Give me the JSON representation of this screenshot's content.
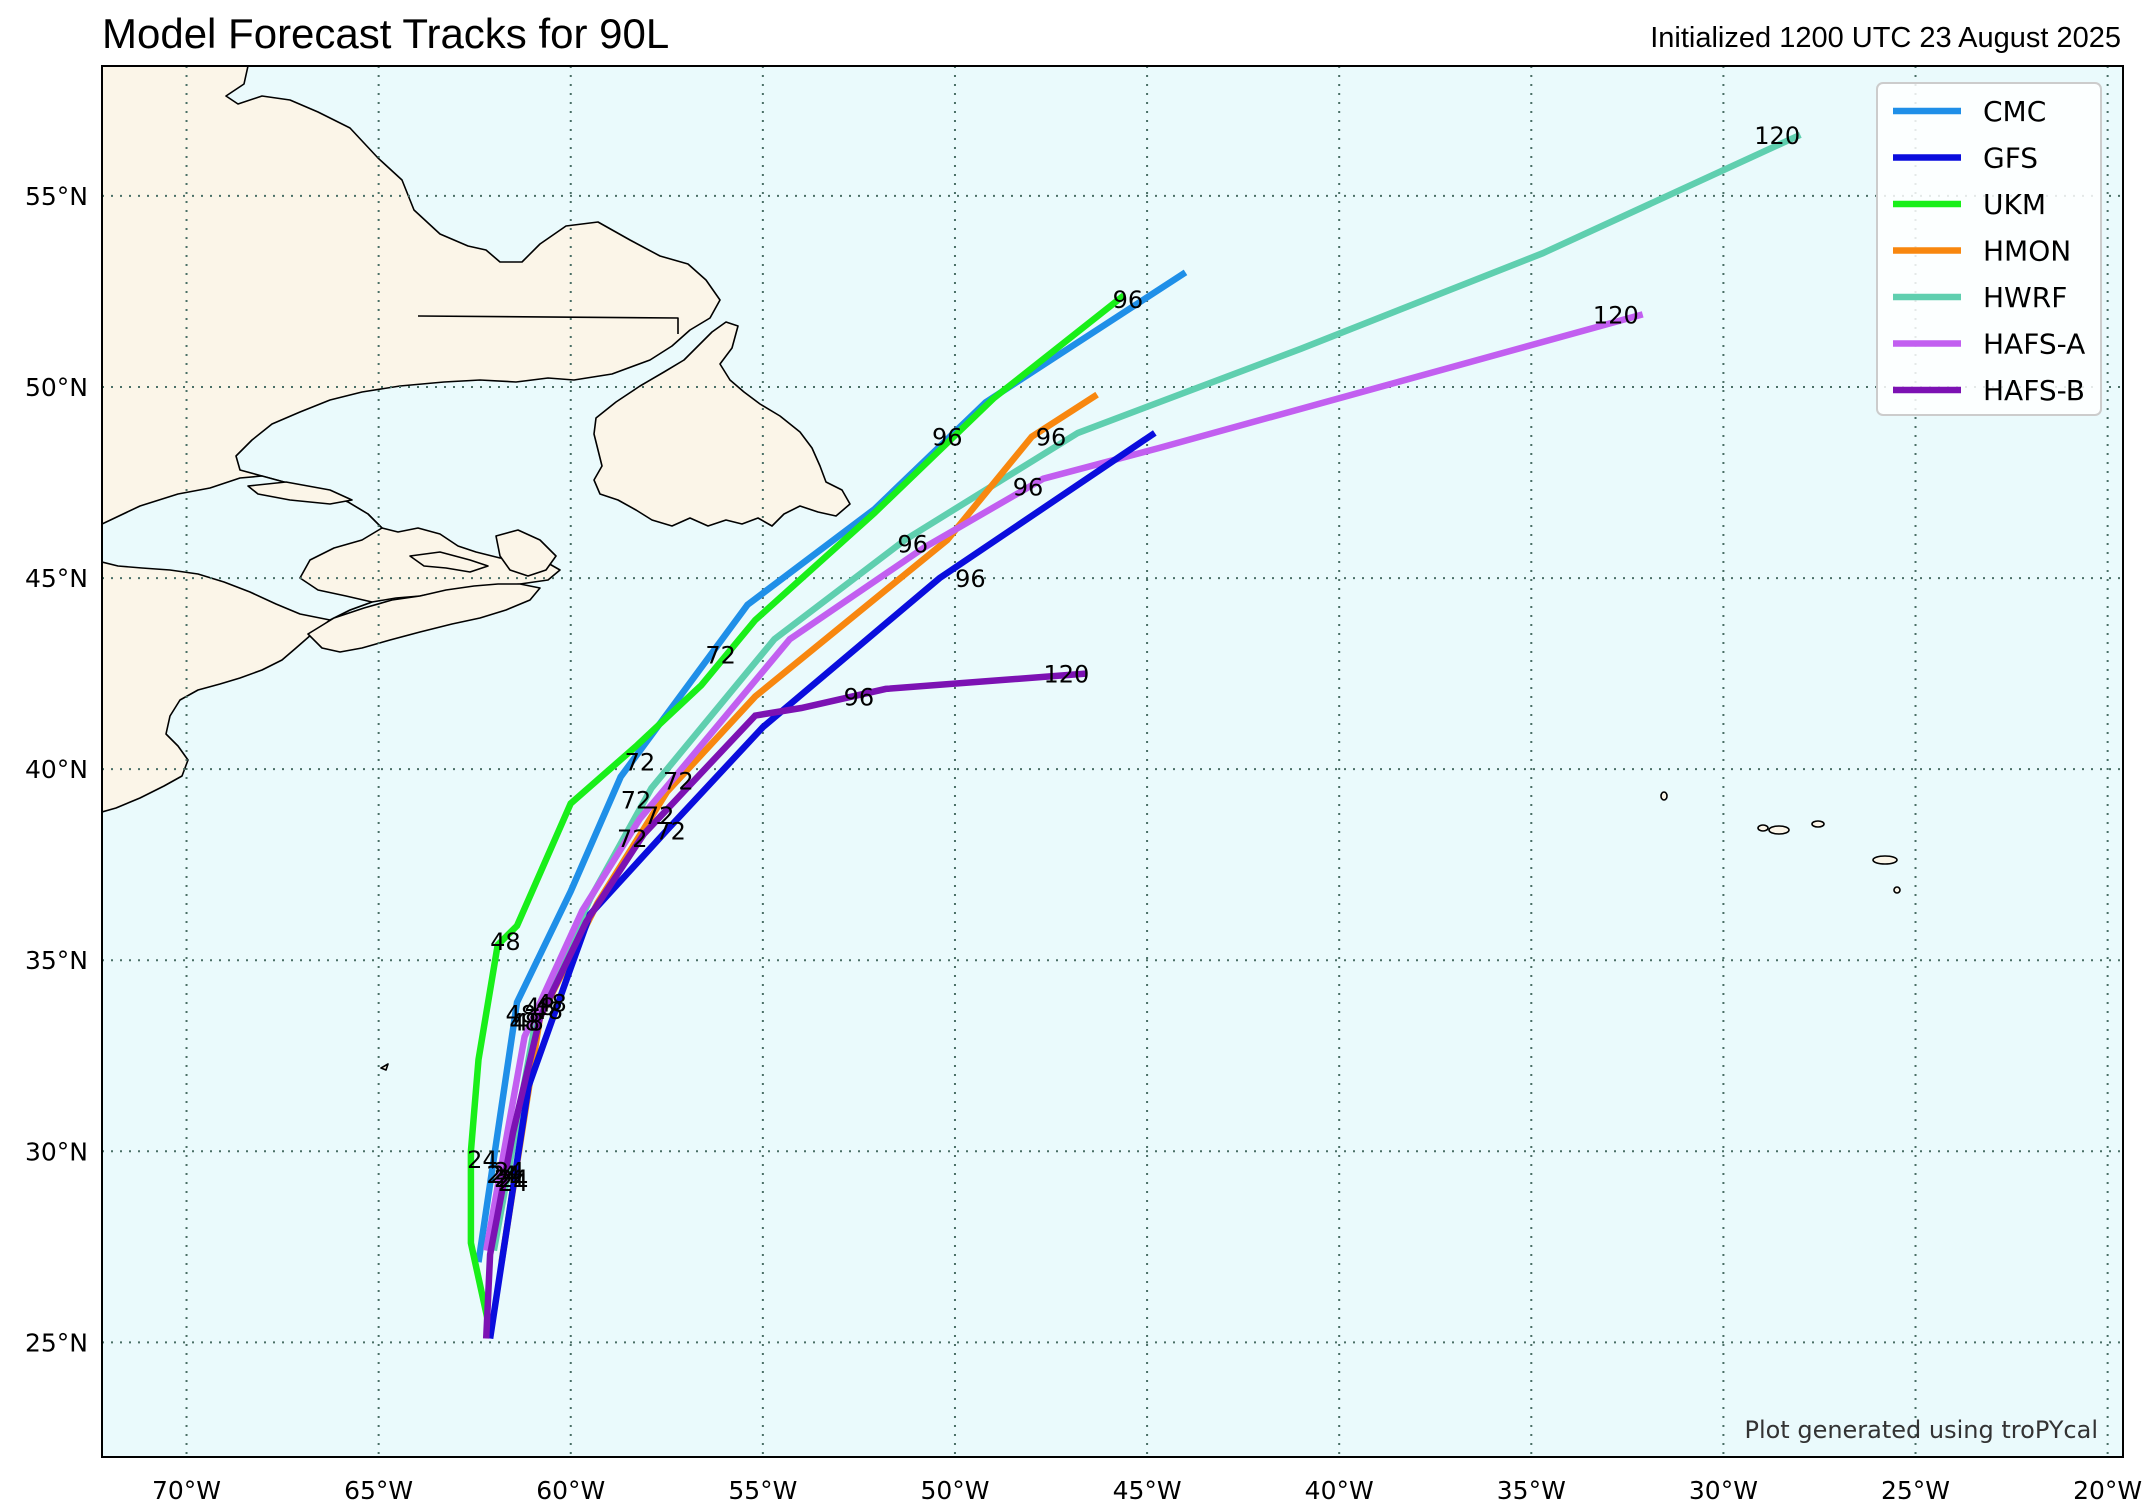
{
  "title": "Model Forecast Tracks for 90L",
  "subtitle": "Initialized 1200 UTC 23 August 2025",
  "credit": "Plot generated using troPYcal",
  "colors": {
    "ocean": "#eafafc",
    "land": "#fbf5e8",
    "grid": "#4a6f66"
  },
  "map": {
    "lon_range": [
      -72.2,
      -19.6
    ],
    "lat_range": [
      22.0,
      58.4
    ],
    "lon_ticks": [
      -70,
      -65,
      -60,
      -55,
      -50,
      -45,
      -40,
      -35,
      -30,
      -25,
      -20
    ],
    "lat_ticks": [
      25,
      30,
      35,
      40,
      45,
      50,
      55
    ],
    "lon_labels": [
      "70°W",
      "65°W",
      "60°W",
      "55°W",
      "50°W",
      "45°W",
      "40°W",
      "35°W",
      "30°W",
      "25°W",
      "20°W"
    ],
    "lat_labels": [
      "25°N",
      "30°N",
      "35°N",
      "40°N",
      "45°N",
      "50°N",
      "55°N"
    ]
  },
  "legend": {
    "position": "top-right",
    "entries": [
      "CMC",
      "GFS",
      "UKM",
      "HMON",
      "HWRF",
      "HAFS-A",
      "HAFS-B"
    ]
  },
  "chart_data": {
    "type": "line",
    "x_label": "longitude",
    "y_label": "latitude",
    "series": [
      {
        "name": "CMC",
        "color": "#1f8fe8",
        "points": [
          [
            -62.4,
            27.1
          ],
          [
            -61.4,
            33.9
          ],
          [
            -60.0,
            36.8
          ],
          [
            -58.7,
            39.8
          ],
          [
            -55.4,
            44.3
          ],
          [
            -52.1,
            46.8
          ],
          [
            -49.2,
            49.6
          ],
          [
            -44.0,
            53.0
          ]
        ],
        "labels": [
          {
            "text": "24",
            "lon": -61.8,
            "lat": 29.4
          },
          {
            "text": "48",
            "lon": -61.3,
            "lat": 33.6
          },
          {
            "text": "72",
            "lon": -58.2,
            "lat": 40.2
          },
          {
            "text": "96",
            "lon": -50.2,
            "lat": 48.7
          }
        ]
      },
      {
        "name": "GFS",
        "color": "#0a0ddd",
        "points": [
          [
            -62.1,
            25.1
          ],
          [
            -61.1,
            31.7
          ],
          [
            -60.0,
            34.8
          ],
          [
            -59.5,
            36.2
          ],
          [
            -57.5,
            38.4
          ],
          [
            -55.0,
            41.1
          ],
          [
            -50.4,
            45.0
          ],
          [
            -44.8,
            48.8
          ]
        ],
        "labels": [
          {
            "text": "24",
            "lon": -61.5,
            "lat": 29.3
          },
          {
            "text": "48",
            "lon": -60.6,
            "lat": 33.7
          },
          {
            "text": "72",
            "lon": -57.4,
            "lat": 38.4
          },
          {
            "text": "96",
            "lon": -49.6,
            "lat": 45.0
          }
        ]
      },
      {
        "name": "UKM",
        "color": "#19ef19",
        "points": [
          [
            -62.1,
            25.3
          ],
          [
            -62.6,
            27.6
          ],
          [
            -62.6,
            30.0
          ],
          [
            -62.4,
            32.4
          ],
          [
            -61.9,
            35.4
          ],
          [
            -61.4,
            35.9
          ],
          [
            -60.0,
            39.1
          ],
          [
            -58.3,
            40.6
          ],
          [
            -56.6,
            42.2
          ],
          [
            -55.2,
            43.9
          ],
          [
            -52.1,
            46.7
          ],
          [
            -49.0,
            49.7
          ],
          [
            -45.6,
            52.4
          ]
        ],
        "labels": [
          {
            "text": "24",
            "lon": -62.3,
            "lat": 29.8
          },
          {
            "text": "48",
            "lon": -61.7,
            "lat": 35.5
          },
          {
            "text": "72",
            "lon": -56.1,
            "lat": 43.0
          },
          {
            "text": "96",
            "lon": -45.5,
            "lat": 52.3
          }
        ]
      },
      {
        "name": "HMON",
        "color": "#f8870f",
        "points": [
          [
            -61.8,
            27.1
          ],
          [
            -60.8,
            33.5
          ],
          [
            -59.3,
            36.5
          ],
          [
            -57.5,
            39.4
          ],
          [
            -55.2,
            41.9
          ],
          [
            -50.2,
            46.0
          ],
          [
            -48.0,
            48.7
          ],
          [
            -46.3,
            49.8
          ]
        ],
        "labels": [
          {
            "text": "24",
            "lon": -61.6,
            "lat": 29.5
          },
          {
            "text": "48",
            "lon": -60.5,
            "lat": 33.9
          },
          {
            "text": "72",
            "lon": -57.2,
            "lat": 39.7
          },
          {
            "text": "96",
            "lon": -47.5,
            "lat": 48.7
          }
        ]
      },
      {
        "name": "HWRF",
        "color": "#5fcfaf",
        "points": [
          [
            -62.0,
            27.4
          ],
          [
            -60.9,
            33.5
          ],
          [
            -59.5,
            36.6
          ],
          [
            -57.9,
            39.5
          ],
          [
            -54.7,
            43.4
          ],
          [
            -51.3,
            46.0
          ],
          [
            -46.8,
            48.8
          ],
          [
            -41.0,
            51.0
          ],
          [
            -34.7,
            53.5
          ],
          [
            -28.0,
            56.6
          ]
        ],
        "labels": [
          {
            "text": "24",
            "lon": -61.7,
            "lat": 29.4
          },
          {
            "text": "48",
            "lon": -60.8,
            "lat": 33.8
          },
          {
            "text": "72",
            "lon": -58.3,
            "lat": 39.2
          },
          {
            "text": "96",
            "lon": -51.1,
            "lat": 45.9
          },
          {
            "text": "120",
            "lon": -28.6,
            "lat": 56.6
          }
        ]
      },
      {
        "name": "HAFS-A",
        "color": "#c25ff0",
        "points": [
          [
            -62.2,
            27.4
          ],
          [
            -61.2,
            33.0
          ],
          [
            -59.7,
            36.3
          ],
          [
            -58.2,
            38.7
          ],
          [
            -54.3,
            43.4
          ],
          [
            -50.8,
            45.8
          ],
          [
            -47.7,
            47.6
          ],
          [
            -44.7,
            48.4
          ],
          [
            -32.1,
            51.9
          ]
        ],
        "labels": [
          {
            "text": "24",
            "lon": -61.6,
            "lat": 29.3
          },
          {
            "text": "48",
            "lon": -61.2,
            "lat": 33.4
          },
          {
            "text": "72",
            "lon": -57.7,
            "lat": 38.8
          },
          {
            "text": "96",
            "lon": -48.1,
            "lat": 47.4
          },
          {
            "text": "120",
            "lon": -32.8,
            "lat": 51.9
          }
        ]
      },
      {
        "name": "HAFS-B",
        "color": "#7c12b3",
        "points": [
          [
            -62.2,
            25.1
          ],
          [
            -62.1,
            27.3
          ],
          [
            -61.5,
            30.5
          ],
          [
            -60.8,
            33.5
          ],
          [
            -59.6,
            36.0
          ],
          [
            -58.1,
            38.3
          ],
          [
            -55.2,
            41.4
          ],
          [
            -54.0,
            41.6
          ],
          [
            -51.8,
            42.1
          ],
          [
            -49.2,
            42.3
          ],
          [
            -46.6,
            42.5
          ]
        ],
        "labels": [
          {
            "text": "24",
            "lon": -61.5,
            "lat": 29.2
          },
          {
            "text": "48",
            "lon": -61.1,
            "lat": 33.4
          },
          {
            "text": "72",
            "lon": -58.4,
            "lat": 38.2
          },
          {
            "text": "96",
            "lon": -52.5,
            "lat": 41.9
          },
          {
            "text": "120",
            "lon": -47.1,
            "lat": 42.5
          }
        ]
      }
    ]
  }
}
